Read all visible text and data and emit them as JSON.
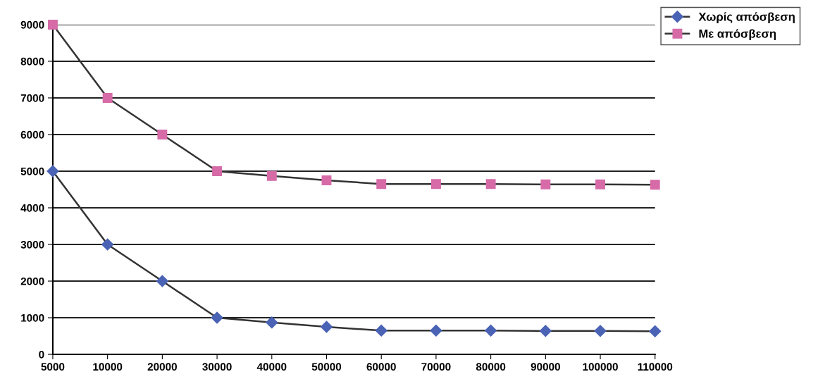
{
  "chart_data": {
    "type": "line",
    "categories": [
      "5000",
      "10000",
      "20000",
      "30000",
      "40000",
      "50000",
      "60000",
      "70000",
      "80000",
      "90000",
      "100000",
      "110000"
    ],
    "series": [
      {
        "name": "Χωρίς απόσβεση",
        "color": "#4a63b5",
        "marker": "diamond",
        "values": [
          5000,
          3000,
          2000,
          1000,
          870,
          750,
          650,
          650,
          650,
          640,
          640,
          630
        ]
      },
      {
        "name": "Με απόσβεση",
        "color": "#d66ba8",
        "marker": "square",
        "values": [
          9000,
          7000,
          6000,
          5000,
          4870,
          4750,
          4650,
          4650,
          4650,
          4640,
          4640,
          4630
        ]
      }
    ],
    "ylim": [
      0,
      9000
    ],
    "yticks": [
      0,
      1000,
      2000,
      3000,
      4000,
      5000,
      6000,
      7000,
      8000,
      9000
    ],
    "grid": "y",
    "legend": "top right",
    "line_style": "solid"
  }
}
